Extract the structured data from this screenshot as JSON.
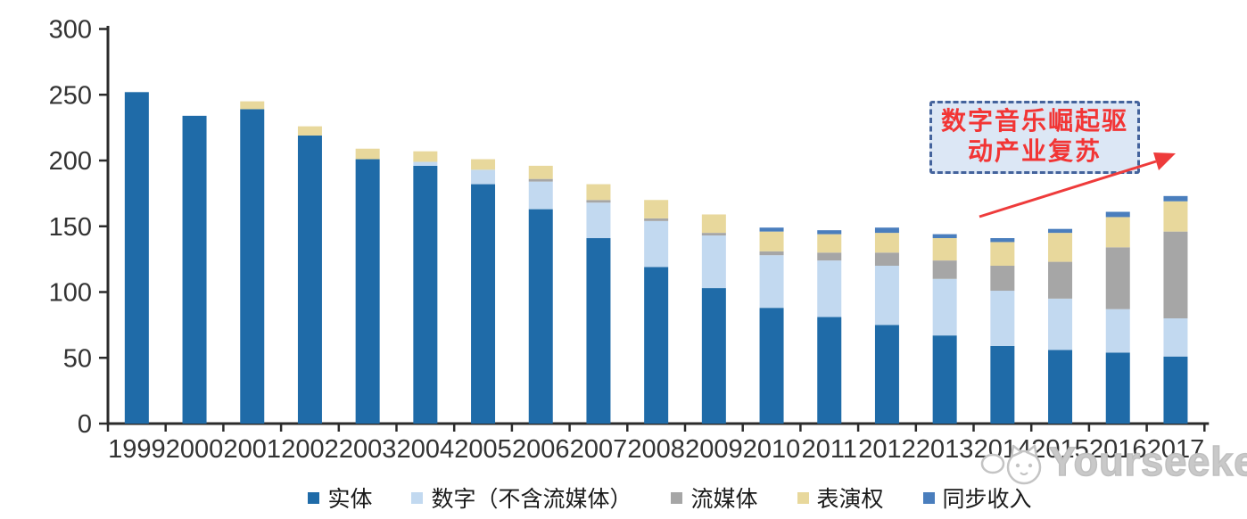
{
  "chart_data": {
    "type": "bar",
    "stacked": true,
    "title": "",
    "xlabel": "",
    "ylabel": "",
    "ylim": [
      0,
      300
    ],
    "yticks": [
      0,
      50,
      100,
      150,
      200,
      250,
      300
    ],
    "grid": false,
    "legend_position": "bottom",
    "categories": [
      "1999",
      "2000",
      "2001",
      "2002",
      "2003",
      "2004",
      "2005",
      "2006",
      "2007",
      "2008",
      "2009",
      "2010",
      "2011",
      "2012",
      "2013",
      "2014",
      "2015",
      "2016",
      "2017"
    ],
    "series": [
      {
        "name": "实体",
        "color": "#1F6BA8",
        "values": [
          252,
          234,
          239,
          219,
          201,
          196,
          182,
          163,
          141,
          119,
          103,
          88,
          81,
          75,
          67,
          59,
          56,
          54,
          51
        ]
      },
      {
        "name": "数字（不含流媒体）",
        "color": "#C2D9F0",
        "values": [
          0,
          0,
          0,
          0,
          0,
          3,
          11,
          21,
          27,
          35,
          40,
          40,
          43,
          45,
          43,
          42,
          39,
          33,
          29
        ]
      },
      {
        "name": "流媒体",
        "color": "#A6A6A6",
        "values": [
          0,
          0,
          0,
          0,
          0,
          0,
          0,
          2,
          2,
          2,
          2,
          3,
          6,
          10,
          14,
          19,
          28,
          47,
          66
        ]
      },
      {
        "name": "表演权",
        "color": "#E8D89C",
        "values": [
          0,
          0,
          6,
          7,
          8,
          8,
          8,
          10,
          12,
          14,
          14,
          15,
          14,
          15,
          17,
          18,
          22,
          23,
          23
        ]
      },
      {
        "name": "同步收入",
        "color": "#4A7EBD",
        "values": [
          0,
          0,
          0,
          0,
          0,
          0,
          0,
          0,
          0,
          0,
          0,
          3,
          3,
          4,
          3,
          3,
          3,
          4,
          4
        ]
      }
    ]
  },
  "axis": {
    "color": "#2B2B2B",
    "label_color": "#333333"
  },
  "annotation": {
    "line1": "数字音乐崛起驱",
    "line2": "动产业复苏",
    "text_color": "#F23535",
    "border_color": "#44639C",
    "fill_color": "#DCE7F5",
    "arrow_color": "#EE3B3B"
  },
  "watermark": {
    "text": "Yourseeker",
    "color": "#C9C9C9"
  }
}
